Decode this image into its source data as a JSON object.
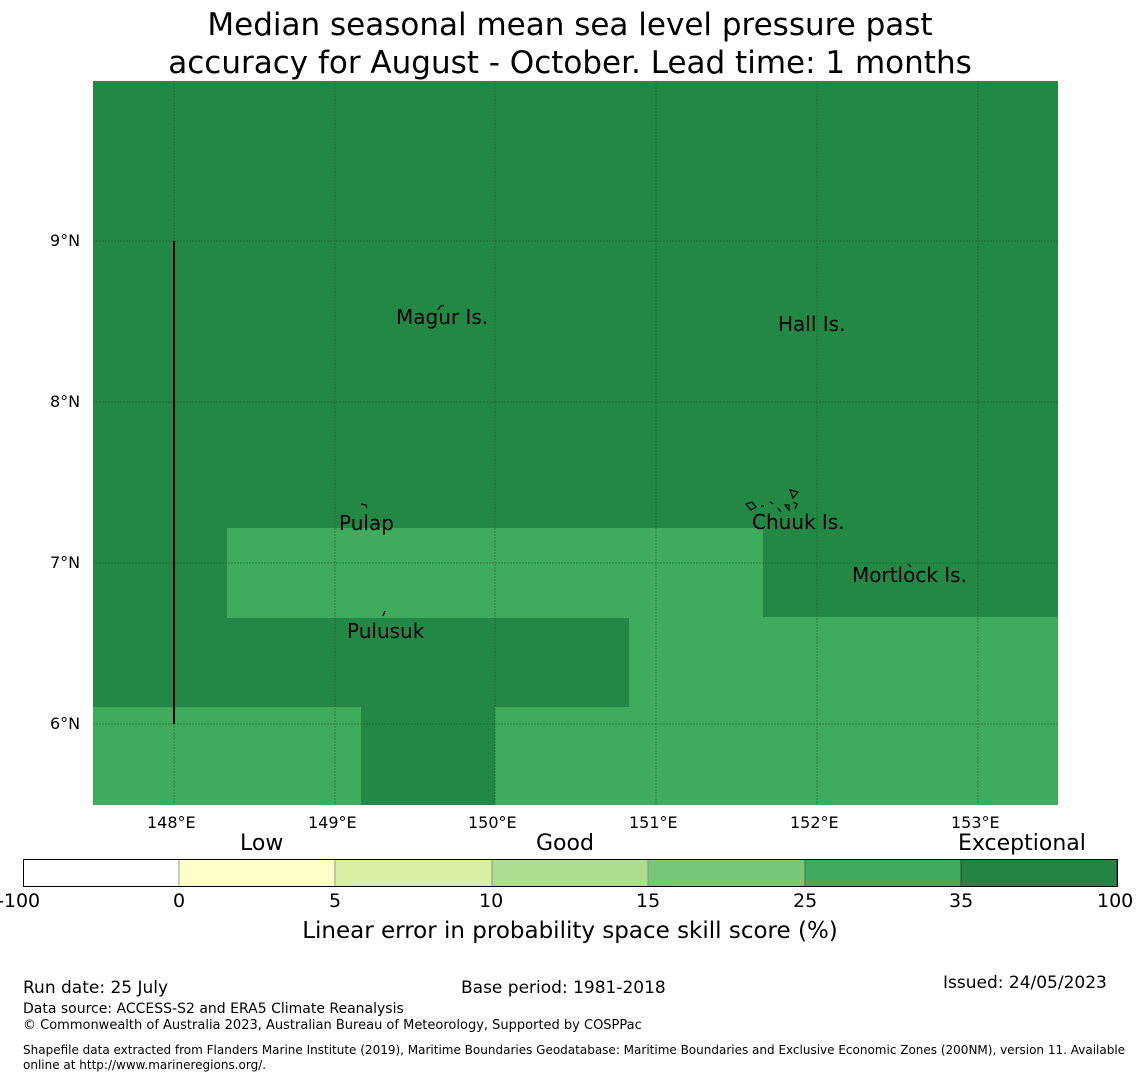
{
  "title": {
    "line1": "Median seasonal mean sea level pressure past",
    "line2": "accuracy for August - October. Lead time: 1 months"
  },
  "map": {
    "lat_ticks": [
      "9°N",
      "8°N",
      "7°N",
      "6°N"
    ],
    "lon_ticks": [
      "148°E",
      "149°E",
      "150°E",
      "151°E",
      "152°E",
      "153°E"
    ],
    "places": [
      {
        "name": "Magur Is."
      },
      {
        "name": "Hall Is."
      },
      {
        "name": "Pulap"
      },
      {
        "name": "Chuuk Is."
      },
      {
        "name": "Mortlock Is."
      },
      {
        "name": "Pulusuk"
      }
    ],
    "colors": {
      "exceptional_dark": "#238845",
      "good_green": "#41ab5d"
    }
  },
  "colorbar": {
    "categories": {
      "low": "Low",
      "good": "Good",
      "exceptional": "Exceptional"
    },
    "ticks": [
      "-100",
      "0",
      "5",
      "10",
      "15",
      "25",
      "35",
      "100"
    ],
    "colors": [
      "#ffffff",
      "#ffffcc",
      "#d9f0a3",
      "#addd8e",
      "#78c679",
      "#41ab5d",
      "#238443"
    ],
    "title": "Linear error in probability space skill score (%)"
  },
  "footer": {
    "run_date": "Run date: 25 July",
    "base_period": "Base period: 1981-2018",
    "issued": "Issued: 24/05/2023",
    "data_source": "Data source: ACCESS-S2 and ERA5 Climate Reanalysis",
    "copyright": "© Commonwealth of Australia 2023, Australian Bureau of Meteorology, Supported by COSPPac",
    "shapefile_line1": "Shapefile data extracted from Flanders Marine Institute (2019), Maritime Boundaries Geodatabase: Maritime Boundaries and Exclusive Economic Zones (200NM), version 11. Available",
    "shapefile_line2": "online at http://www.marineregions.org/."
  }
}
